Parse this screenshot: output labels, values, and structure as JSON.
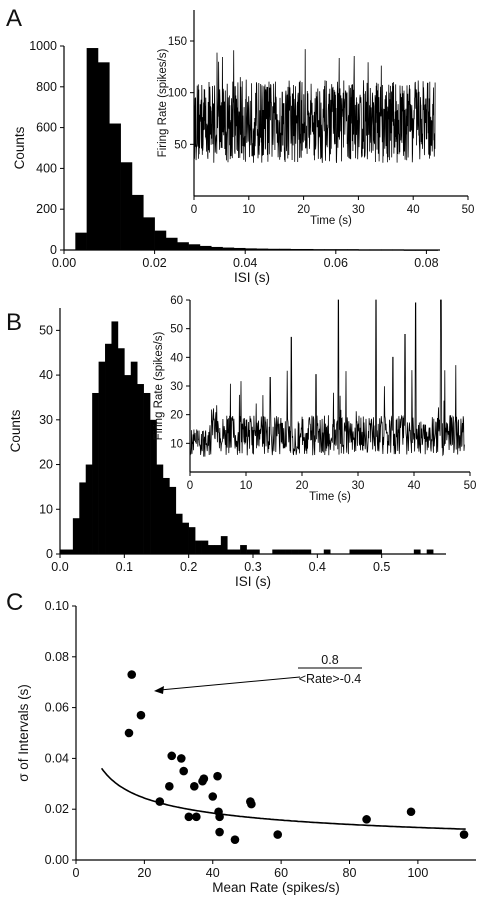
{
  "chart_data": [
    {
      "panel": "A",
      "type": "bar",
      "xlabel": "ISI (s)",
      "ylabel": "Counts",
      "xlim": [
        0,
        0.083
      ],
      "ylim": [
        0,
        1000
      ],
      "xticks": [
        "0.00",
        "0.02",
        "0.04",
        "0.06",
        "0.08"
      ],
      "yticks": [
        "0",
        "200",
        "400",
        "600",
        "800",
        "1000"
      ],
      "bin_width": 0.0025,
      "bin_start": 0.0025,
      "values": [
        85,
        990,
        920,
        620,
        430,
        270,
        160,
        95,
        60,
        38,
        28,
        20,
        15,
        12,
        10,
        8,
        7,
        6,
        6,
        5,
        5,
        4,
        4,
        4,
        4,
        3,
        3,
        3,
        3,
        2,
        2,
        2
      ],
      "inset": {
        "type": "line",
        "xlabel": "Time (s)",
        "ylabel": "Firing Rate (spikes/s)",
        "xlim": [
          0,
          50
        ],
        "ylim": [
          0,
          180
        ],
        "xticks": [
          "0",
          "10",
          "20",
          "30",
          "40",
          "50"
        ],
        "yticks": [
          "50",
          "100",
          "150"
        ],
        "x_end": 44,
        "mean": 72,
        "spread": 40,
        "min": 10,
        "max": 175
      }
    },
    {
      "panel": "B",
      "type": "bar",
      "xlabel": "ISI (s)",
      "ylabel": "Counts",
      "xlim": [
        0,
        0.6
      ],
      "ylim": [
        0,
        55
      ],
      "xticks": [
        "0.0",
        "0.1",
        "0.2",
        "0.3",
        "0.4",
        "0.5"
      ],
      "yticks": [
        "0",
        "10",
        "20",
        "30",
        "40",
        "50"
      ],
      "bin_width": 0.01,
      "bin_start": 0.0,
      "values": [
        1,
        1,
        8,
        16,
        20,
        36,
        43,
        47,
        52,
        46,
        40,
        43,
        38,
        36,
        30,
        20,
        17,
        15,
        9,
        7,
        6,
        3,
        3,
        2,
        2,
        4,
        1,
        1,
        2,
        1,
        1,
        0,
        0,
        1,
        1,
        1,
        1,
        1,
        1,
        0,
        0,
        1,
        0,
        0,
        0,
        1,
        1,
        1,
        1,
        1,
        0,
        0,
        0,
        0,
        0,
        1,
        0,
        1
      ],
      "inset": {
        "type": "line",
        "xlabel": "Time (s)",
        "ylabel": "Firing Rate (spikes/s)",
        "xlim": [
          0,
          50
        ],
        "ylim": [
          0,
          60
        ],
        "xticks": [
          "0",
          "10",
          "20",
          "30",
          "40",
          "50"
        ],
        "yticks": [
          "10",
          "20",
          "30",
          "40",
          "50",
          "60"
        ],
        "spikes": [
          [
            26.5,
            60
          ],
          [
            33.2,
            60
          ],
          [
            40.3,
            59
          ],
          [
            44.8,
            60
          ],
          [
            18.1,
            47
          ],
          [
            38.4,
            48
          ],
          [
            36.2,
            40
          ],
          [
            14.3,
            33
          ],
          [
            22.5,
            34
          ]
        ]
      }
    },
    {
      "panel": "C",
      "type": "scatter",
      "xlabel": "Mean Rate (spikes/s)",
      "ylabel": "σ of Intervals (s)",
      "xlim": [
        0,
        117
      ],
      "ylim": [
        0,
        0.1
      ],
      "xticks": [
        "0",
        "20",
        "40",
        "60",
        "80",
        "100"
      ],
      "yticks": [
        "0.00",
        "0.02",
        "0.04",
        "0.06",
        "0.08",
        "0.10"
      ],
      "points": [
        [
          15.5,
          0.05
        ],
        [
          16.3,
          0.073
        ],
        [
          19.0,
          0.057
        ],
        [
          24.5,
          0.023
        ],
        [
          27.3,
          0.029
        ],
        [
          28.0,
          0.041
        ],
        [
          30.8,
          0.04
        ],
        [
          31.5,
          0.035
        ],
        [
          33.0,
          0.017
        ],
        [
          34.6,
          0.029
        ],
        [
          35.2,
          0.017
        ],
        [
          37.0,
          0.031
        ],
        [
          37.4,
          0.032
        ],
        [
          40.0,
          0.025
        ],
        [
          41.4,
          0.033
        ],
        [
          41.7,
          0.019
        ],
        [
          42.0,
          0.011
        ],
        [
          42.0,
          0.017
        ],
        [
          46.5,
          0.008
        ],
        [
          51.0,
          0.023
        ],
        [
          51.3,
          0.022
        ],
        [
          59.0,
          0.01
        ],
        [
          85.0,
          0.016
        ],
        [
          98.0,
          0.019
        ],
        [
          113.5,
          0.01
        ]
      ],
      "fit": {
        "numerator": 0.8,
        "power": -0.4
      },
      "annotation": {
        "numerator": "0.8",
        "denominator": "<Rate>-0.4"
      }
    }
  ]
}
